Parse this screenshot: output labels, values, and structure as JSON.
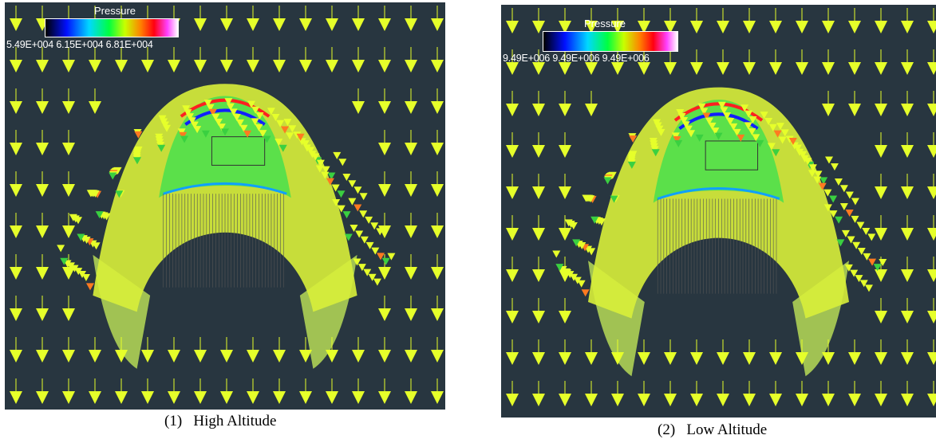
{
  "panels": [
    {
      "legend_title": "Pressure",
      "ticks": [
        "5.49E+004",
        "6.15E+004",
        "6.81E+004"
      ],
      "caption": "(1)   High Altitude"
    },
    {
      "legend_title": "Pressure",
      "ticks": [
        "9.49E+006",
        "9.49E+006",
        "9.49E+006"
      ],
      "caption": "(2)   Low Altitude"
    }
  ],
  "colors": {
    "background": "#283640",
    "arrow": "#e6ff2a",
    "surface_green": "#5be04a",
    "surface_yellow": "#d8f03a"
  }
}
